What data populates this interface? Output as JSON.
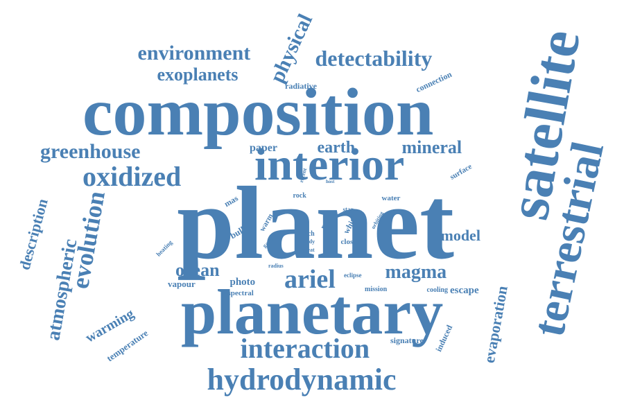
{
  "word_color": "#4a80b4",
  "background_color": "#ffffff",
  "words": [
    {
      "text": "composition",
      "rotation": 0
    },
    {
      "text": "planet",
      "rotation": 0
    },
    {
      "text": "planetary",
      "rotation": 0
    },
    {
      "text": "satellite",
      "rotation": -80
    },
    {
      "text": "terrestrial",
      "rotation": -78
    },
    {
      "text": "interior",
      "rotation": 0
    },
    {
      "text": "hydrodynamic",
      "rotation": 0
    },
    {
      "text": "interaction",
      "rotation": 0
    },
    {
      "text": "environment",
      "rotation": 0
    },
    {
      "text": "detectability",
      "rotation": 0
    },
    {
      "text": "exoplanets",
      "rotation": 0
    },
    {
      "text": "greenhouse",
      "rotation": 0
    },
    {
      "text": "oxidized",
      "rotation": 0
    },
    {
      "text": "physical",
      "rotation": -65
    },
    {
      "text": "evolution",
      "rotation": -80
    },
    {
      "text": "atmospheric",
      "rotation": -80
    },
    {
      "text": "description",
      "rotation": -75
    },
    {
      "text": "mineral",
      "rotation": 0
    },
    {
      "text": "earth",
      "rotation": 0
    },
    {
      "text": "magma",
      "rotation": 0
    },
    {
      "text": "ariel",
      "rotation": 0
    },
    {
      "text": "ocean",
      "rotation": 0
    },
    {
      "text": "model",
      "rotation": 0
    },
    {
      "text": "warming",
      "rotation": -30
    },
    {
      "text": "evaporation",
      "rotation": -80
    },
    {
      "text": "paper",
      "rotation": 0
    },
    {
      "text": "connection",
      "rotation": -25
    },
    {
      "text": "radiative",
      "rotation": 0
    },
    {
      "text": "surface",
      "rotation": -30
    },
    {
      "text": "temperature",
      "rotation": -35
    },
    {
      "text": "vapour",
      "rotation": 0
    },
    {
      "text": "photo",
      "rotation": 0
    },
    {
      "text": "spectral",
      "rotation": 0
    },
    {
      "text": "escape",
      "rotation": 0
    },
    {
      "text": "cooling",
      "rotation": 0
    },
    {
      "text": "eclipse",
      "rotation": 0
    },
    {
      "text": "mission",
      "rotation": 0
    },
    {
      "text": "signature",
      "rotation": 0
    },
    {
      "text": "induced",
      "rotation": -65
    },
    {
      "text": "bulk",
      "rotation": -30
    },
    {
      "text": "mas",
      "rotation": -30
    },
    {
      "text": "mar",
      "rotation": -60
    },
    {
      "text": "warm",
      "rotation": -60
    },
    {
      "text": "rock",
      "rotation": 0
    },
    {
      "text": "rich",
      "rotation": 0
    },
    {
      "text": "study",
      "rotation": 0
    },
    {
      "text": "great",
      "rotation": 0
    },
    {
      "text": "white",
      "rotation": -60
    },
    {
      "text": "close",
      "rotation": 0
    },
    {
      "text": "water",
      "rotation": 0
    },
    {
      "text": "star",
      "rotation": 0
    },
    {
      "text": "orbiting",
      "rotation": -60
    },
    {
      "text": "heating",
      "rotation": -45
    },
    {
      "text": "gases",
      "rotation": -45
    },
    {
      "text": "radius",
      "rotation": 0
    },
    {
      "text": "recent",
      "rotation": -75
    },
    {
      "text": "host",
      "rotation": 0
    }
  ]
}
